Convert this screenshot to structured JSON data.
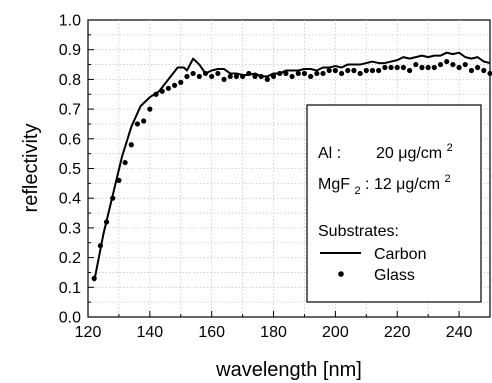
{
  "chart_data": {
    "type": "line",
    "xlabel": "wavelength [nm]",
    "ylabel": "reflectivity",
    "xlim": [
      120,
      250
    ],
    "ylim": [
      0.0,
      1.0
    ],
    "x_ticks": [
      "120",
      "140",
      "160",
      "180",
      "200",
      "220",
      "240"
    ],
    "y_ticks": [
      "0.0",
      "0.1",
      "0.2",
      "0.3",
      "0.4",
      "0.5",
      "0.6",
      "0.7",
      "0.8",
      "0.9",
      "1.0"
    ],
    "grid": "dotted",
    "legend_position": "right",
    "annotations": {
      "al_label": "Al :",
      "al_value": "20 μg/cm",
      "al_sup": "2",
      "mgf_label_main": "MgF",
      "mgf_sub": "2",
      "mgf_label_colon": ":",
      "mgf_value": " 12 μg/cm",
      "mgf_sup": "2",
      "substrates_title": "Substrates:"
    },
    "series": [
      {
        "name": "Carbon",
        "style": "line",
        "color": "#000000",
        "x": [
          122,
          125,
          128,
          131,
          134,
          137,
          140,
          143,
          146,
          149,
          151,
          152,
          154,
          156,
          158,
          160,
          162,
          164,
          166,
          168,
          170,
          172,
          174,
          176,
          178,
          180,
          182,
          184,
          186,
          188,
          190,
          192,
          194,
          196,
          198,
          200,
          202,
          204,
          206,
          208,
          210,
          212,
          214,
          216,
          218,
          220,
          222,
          224,
          226,
          228,
          230,
          232,
          234,
          236,
          238,
          240,
          242,
          244,
          246,
          248,
          250
        ],
        "y": [
          0.12,
          0.28,
          0.41,
          0.54,
          0.64,
          0.71,
          0.74,
          0.76,
          0.8,
          0.84,
          0.84,
          0.83,
          0.87,
          0.85,
          0.82,
          0.83,
          0.835,
          0.835,
          0.82,
          0.82,
          0.815,
          0.815,
          0.82,
          0.81,
          0.81,
          0.82,
          0.82,
          0.83,
          0.83,
          0.83,
          0.835,
          0.835,
          0.83,
          0.84,
          0.84,
          0.845,
          0.84,
          0.85,
          0.85,
          0.85,
          0.855,
          0.86,
          0.855,
          0.855,
          0.86,
          0.865,
          0.875,
          0.87,
          0.875,
          0.88,
          0.875,
          0.88,
          0.88,
          0.89,
          0.885,
          0.89,
          0.875,
          0.87,
          0.875,
          0.86,
          0.855
        ]
      },
      {
        "name": "Glass",
        "style": "dots",
        "color": "#000000",
        "x": [
          122,
          124,
          126,
          128,
          130,
          132,
          134,
          136,
          138,
          140,
          142,
          144,
          146,
          148,
          150,
          152,
          154,
          156,
          158,
          160,
          162,
          164,
          166,
          168,
          170,
          172,
          174,
          176,
          178,
          180,
          182,
          184,
          186,
          188,
          190,
          192,
          194,
          196,
          198,
          200,
          202,
          204,
          206,
          208,
          210,
          212,
          214,
          216,
          218,
          220,
          222,
          224,
          226,
          228,
          230,
          232,
          234,
          236,
          238,
          240,
          242,
          244,
          246,
          248,
          250
        ],
        "y": [
          0.13,
          0.24,
          0.32,
          0.4,
          0.46,
          0.52,
          0.58,
          0.65,
          0.66,
          0.7,
          0.75,
          0.76,
          0.77,
          0.78,
          0.79,
          0.81,
          0.82,
          0.81,
          0.82,
          0.81,
          0.82,
          0.8,
          0.81,
          0.81,
          0.81,
          0.82,
          0.81,
          0.81,
          0.8,
          0.81,
          0.82,
          0.82,
          0.81,
          0.82,
          0.82,
          0.81,
          0.82,
          0.82,
          0.83,
          0.83,
          0.82,
          0.83,
          0.83,
          0.82,
          0.83,
          0.83,
          0.83,
          0.84,
          0.84,
          0.84,
          0.84,
          0.83,
          0.85,
          0.84,
          0.84,
          0.84,
          0.85,
          0.86,
          0.85,
          0.84,
          0.85,
          0.83,
          0.84,
          0.83,
          0.82
        ]
      }
    ]
  }
}
